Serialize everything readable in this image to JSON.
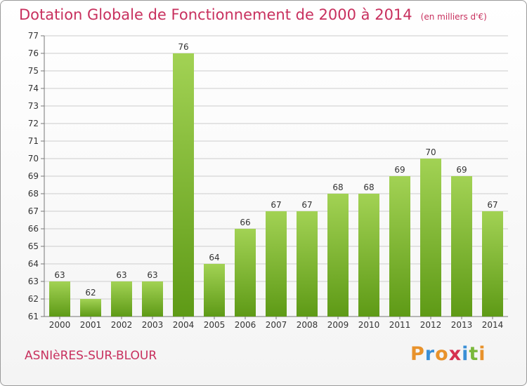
{
  "header": {
    "title": "Dotation Globale de Fonctionnement de 2000 à 2014",
    "units": "(en milliers d'€)"
  },
  "footer": {
    "commune": "ASNIèRES-SUR-BLOUR",
    "brand": "Proxiti",
    "brand_colors": [
      "#e8922b",
      "#3a8fd6",
      "#e8922b",
      "#d6304f",
      "#3a8fd6",
      "#7ab83a",
      "#e8922b"
    ]
  },
  "colors": {
    "title": "#c8305e",
    "bar_light": "#a2d254",
    "bar_dark": "#5e9a16",
    "grid": "#cccccc"
  },
  "chart_data": {
    "type": "bar",
    "categories": [
      "2000",
      "2001",
      "2002",
      "2003",
      "2004",
      "2005",
      "2006",
      "2007",
      "2008",
      "2009",
      "2010",
      "2011",
      "2012",
      "2013",
      "2014"
    ],
    "values": [
      63,
      62,
      63,
      63,
      76,
      64,
      66,
      67,
      67,
      68,
      68,
      69,
      70,
      69,
      67
    ],
    "ylim": [
      61,
      77
    ],
    "yticks": [
      61,
      62,
      63,
      64,
      65,
      66,
      67,
      68,
      69,
      70,
      71,
      72,
      73,
      74,
      75,
      76,
      77
    ],
    "grid": true,
    "xlabel": "",
    "ylabel": ""
  }
}
